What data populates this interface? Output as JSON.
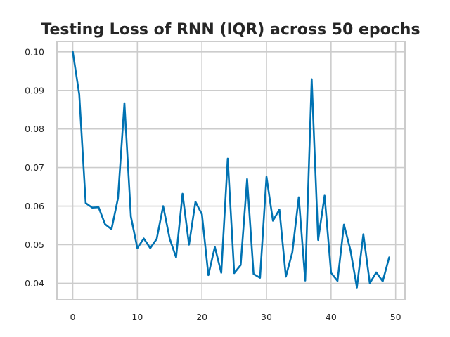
{
  "chart_data": {
    "type": "line",
    "title": "Testing Loss of RNN (IQR) across 50 epochs",
    "xlabel": "",
    "ylabel": "",
    "xlim": [
      -2.45,
      51.45
    ],
    "ylim": [
      0.0357,
      0.1027
    ],
    "xticks": [
      0,
      10,
      20,
      30,
      40,
      50
    ],
    "xtick_labels": [
      "0",
      "10",
      "20",
      "30",
      "40",
      "50"
    ],
    "yticks": [
      0.04,
      0.05,
      0.06,
      0.07,
      0.08,
      0.09,
      0.1
    ],
    "ytick_labels": [
      "0.04",
      "0.05",
      "0.06",
      "0.07",
      "0.08",
      "0.09",
      "0.10"
    ],
    "grid": true,
    "line_color": "#0072b2",
    "grid_color": "#cccccc",
    "series": [
      {
        "x": [
          0,
          1,
          2,
          3,
          4,
          5,
          6,
          7,
          8,
          9,
          10,
          11,
          12,
          13,
          14,
          15,
          16,
          17,
          18,
          19,
          20,
          21,
          22,
          23,
          24,
          25,
          26,
          27,
          28,
          29,
          30,
          31,
          32,
          33,
          34,
          35,
          36,
          37,
          38,
          39,
          40,
          41,
          42,
          43,
          44,
          45,
          46,
          47,
          48,
          49
        ],
        "values": [
          0.1,
          0.089,
          0.0608,
          0.0596,
          0.0597,
          0.0553,
          0.054,
          0.062,
          0.0867,
          0.0573,
          0.0491,
          0.0516,
          0.0491,
          0.0515,
          0.06,
          0.0516,
          0.0467,
          0.0632,
          0.05,
          0.0611,
          0.0579,
          0.0421,
          0.0494,
          0.0427,
          0.0723,
          0.0426,
          0.0447,
          0.067,
          0.0424,
          0.0414,
          0.0676,
          0.0562,
          0.0591,
          0.0417,
          0.048,
          0.0623,
          0.0407,
          0.0929,
          0.0512,
          0.0627,
          0.0427,
          0.0406,
          0.0552,
          0.0486,
          0.0389,
          0.0527,
          0.04,
          0.0428,
          0.0405,
          0.0467
        ]
      }
    ]
  }
}
